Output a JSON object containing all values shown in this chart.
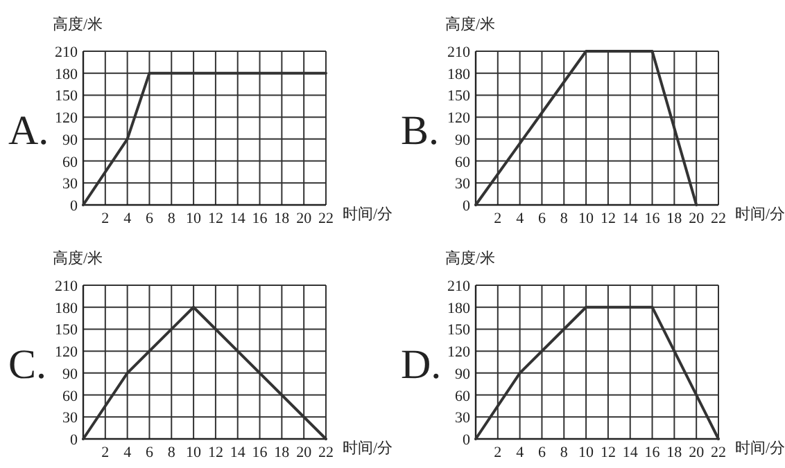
{
  "chart_data": [
    {
      "type": "line",
      "title": "A.",
      "xlabel": "时间/分",
      "ylabel": "高度/米",
      "x": [
        0,
        4,
        6,
        22
      ],
      "values": [
        0,
        90,
        180,
        180
      ],
      "color": "#333333",
      "xlim": [
        0,
        22
      ],
      "ylim": [
        0,
        210
      ],
      "xticks": [
        2,
        4,
        6,
        8,
        10,
        12,
        14,
        16,
        18,
        20,
        22
      ],
      "yticks": [
        0,
        30,
        60,
        90,
        120,
        150,
        180,
        210
      ],
      "grid": true
    },
    {
      "type": "line",
      "title": "B.",
      "xlabel": "时间/分",
      "ylabel": "高度/米",
      "x": [
        0,
        10,
        16,
        20
      ],
      "values": [
        0,
        210,
        210,
        0
      ],
      "color": "#333333",
      "xlim": [
        0,
        22
      ],
      "ylim": [
        0,
        210
      ],
      "xticks": [
        2,
        4,
        6,
        8,
        10,
        12,
        14,
        16,
        18,
        20,
        22
      ],
      "yticks": [
        0,
        30,
        60,
        90,
        120,
        150,
        180,
        210
      ],
      "grid": true
    },
    {
      "type": "line",
      "title": "C.",
      "xlabel": "时间/分",
      "ylabel": "高度/米",
      "x": [
        0,
        4,
        10,
        22
      ],
      "values": [
        0,
        90,
        180,
        0
      ],
      "color": "#333333",
      "xlim": [
        0,
        22
      ],
      "ylim": [
        0,
        210
      ],
      "xticks": [
        2,
        4,
        6,
        8,
        10,
        12,
        14,
        16,
        18,
        20,
        22
      ],
      "yticks": [
        0,
        30,
        60,
        90,
        120,
        150,
        180,
        210
      ],
      "grid": true
    },
    {
      "type": "line",
      "title": "D.",
      "xlabel": "时间/分",
      "ylabel": "高度/米",
      "x": [
        0,
        4,
        10,
        16,
        22
      ],
      "values": [
        0,
        90,
        180,
        180,
        0
      ],
      "color": "#333333",
      "xlim": [
        0,
        22
      ],
      "ylim": [
        0,
        210
      ],
      "xticks": [
        2,
        4,
        6,
        8,
        10,
        12,
        14,
        16,
        18,
        20,
        22
      ],
      "yticks": [
        0,
        30,
        60,
        90,
        120,
        150,
        180,
        210
      ],
      "grid": true
    }
  ]
}
